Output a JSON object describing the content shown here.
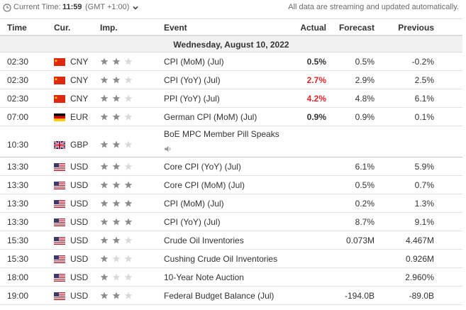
{
  "topbar": {
    "current_time_label": "Current Time:",
    "current_time_value": "11:59",
    "timezone": "(GMT +1:00)",
    "stream_note": "All data are streaming and updated automatically."
  },
  "columns": {
    "time": "Time",
    "currency": "Cur.",
    "importance": "Imp.",
    "event": "Event",
    "actual": "Actual",
    "forecast": "Forecast",
    "previous": "Previous"
  },
  "date_band": "Wednesday, August 10, 2022",
  "colors": {
    "negative_actual": "#e12727",
    "star_filled": "#8c8c8c",
    "star_empty": "#d9d9d9"
  },
  "rows": [
    {
      "time": "02:30",
      "flag": "cn-flag-icon",
      "currency": "CNY",
      "importance": 2,
      "event": "CPI (MoM) (Jul)",
      "actual": "0.5%",
      "actual_color": "black",
      "forecast": "0.5%",
      "previous": "-0.2%"
    },
    {
      "time": "02:30",
      "flag": "cn-flag-icon",
      "currency": "CNY",
      "importance": 2,
      "event": "CPI (YoY) (Jul)",
      "actual": "2.7%",
      "actual_color": "red",
      "forecast": "2.9%",
      "previous": "2.5%"
    },
    {
      "time": "02:30",
      "flag": "cn-flag-icon",
      "currency": "CNY",
      "importance": 2,
      "event": "PPI (YoY) (Jul)",
      "actual": "4.2%",
      "actual_color": "red",
      "forecast": "4.8%",
      "previous": "6.1%"
    },
    {
      "time": "07:00",
      "flag": "de-flag-icon",
      "currency": "EUR",
      "importance": 2,
      "event": "German CPI (MoM) (Jul)",
      "actual": "0.9%",
      "actual_color": "black",
      "forecast": "0.9%",
      "previous": "0.1%"
    },
    {
      "time": "10:30",
      "flag": "gb-flag-icon",
      "currency": "GBP",
      "importance": 2,
      "event": "BoE MPC Member Pill Speaks",
      "actual": "",
      "actual_color": "black",
      "forecast": "",
      "previous": "",
      "speech": true
    },
    {
      "time": "13:30",
      "flag": "us-flag-icon",
      "currency": "USD",
      "importance": 2,
      "event": "Core CPI (YoY) (Jul)",
      "actual": "",
      "actual_color": "black",
      "forecast": "6.1%",
      "previous": "5.9%"
    },
    {
      "time": "13:30",
      "flag": "us-flag-icon",
      "currency": "USD",
      "importance": 3,
      "event": "Core CPI (MoM) (Jul)",
      "actual": "",
      "actual_color": "black",
      "forecast": "0.5%",
      "previous": "0.7%"
    },
    {
      "time": "13:30",
      "flag": "us-flag-icon",
      "currency": "USD",
      "importance": 3,
      "event": "CPI (MoM) (Jul)",
      "actual": "",
      "actual_color": "black",
      "forecast": "0.2%",
      "previous": "1.3%"
    },
    {
      "time": "13:30",
      "flag": "us-flag-icon",
      "currency": "USD",
      "importance": 3,
      "event": "CPI (YoY) (Jul)",
      "actual": "",
      "actual_color": "black",
      "forecast": "8.7%",
      "previous": "9.1%"
    },
    {
      "time": "15:30",
      "flag": "us-flag-icon",
      "currency": "USD",
      "importance": 2,
      "event": "Crude Oil Inventories",
      "actual": "",
      "actual_color": "black",
      "forecast": "0.073M",
      "previous": "4.467M"
    },
    {
      "time": "15:30",
      "flag": "us-flag-icon",
      "currency": "USD",
      "importance": 1,
      "event": "Cushing Crude Oil Inventories",
      "actual": "",
      "actual_color": "black",
      "forecast": "",
      "previous": "0.926M"
    },
    {
      "time": "18:00",
      "flag": "us-flag-icon",
      "currency": "USD",
      "importance": 1,
      "event": "10-Year Note Auction",
      "actual": "",
      "actual_color": "black",
      "forecast": "",
      "previous": "2.960%"
    },
    {
      "time": "19:00",
      "flag": "us-flag-icon",
      "currency": "USD",
      "importance": 2,
      "event": "Federal Budget Balance (Jul)",
      "actual": "",
      "actual_color": "black",
      "forecast": "-194.0B",
      "previous": "-89.0B"
    }
  ]
}
